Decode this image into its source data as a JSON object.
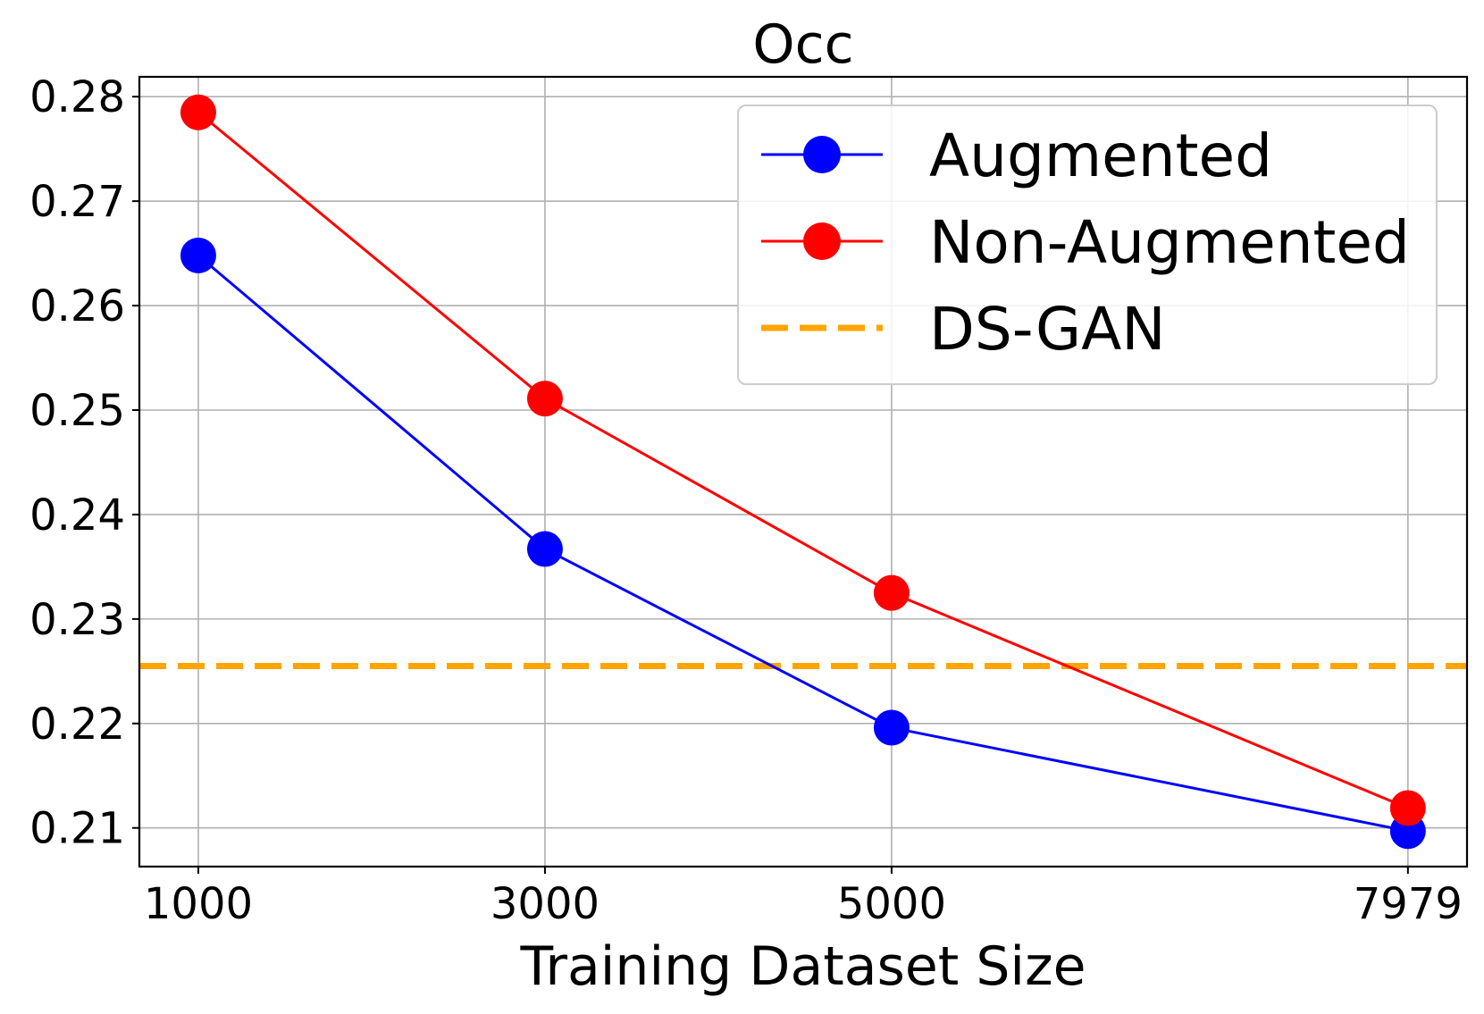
{
  "chart_data": {
    "type": "line",
    "title": "Occ",
    "xlabel": "Training Dataset Size",
    "ylabel": "",
    "x": [
      1000,
      3000,
      5000,
      7979
    ],
    "x_tick_labels": [
      "1000",
      "3000",
      "5000",
      "7979"
    ],
    "xlim": [
      660,
      8320
    ],
    "ylim": [
      0.2063,
      0.2819
    ],
    "y_ticks": [
      0.21,
      0.22,
      0.23,
      0.24,
      0.25,
      0.26,
      0.27,
      0.28
    ],
    "y_tick_labels": [
      "0.21",
      "0.22",
      "0.23",
      "0.24",
      "0.25",
      "0.26",
      "0.27",
      "0.28"
    ],
    "grid": true,
    "legend_position": "upper right",
    "series": [
      {
        "name": "Augmented",
        "style": "line-marker",
        "color": "#0000ff",
        "values": [
          0.2648,
          0.2367,
          0.2196,
          0.2097
        ]
      },
      {
        "name": "Non-Augmented",
        "style": "line-marker",
        "color": "#ff0000",
        "values": [
          0.2785,
          0.2511,
          0.2325,
          0.2119
        ]
      },
      {
        "name": "DS-GAN",
        "style": "horizontal-dashed",
        "color": "#ffa500",
        "value": 0.2255
      }
    ]
  }
}
